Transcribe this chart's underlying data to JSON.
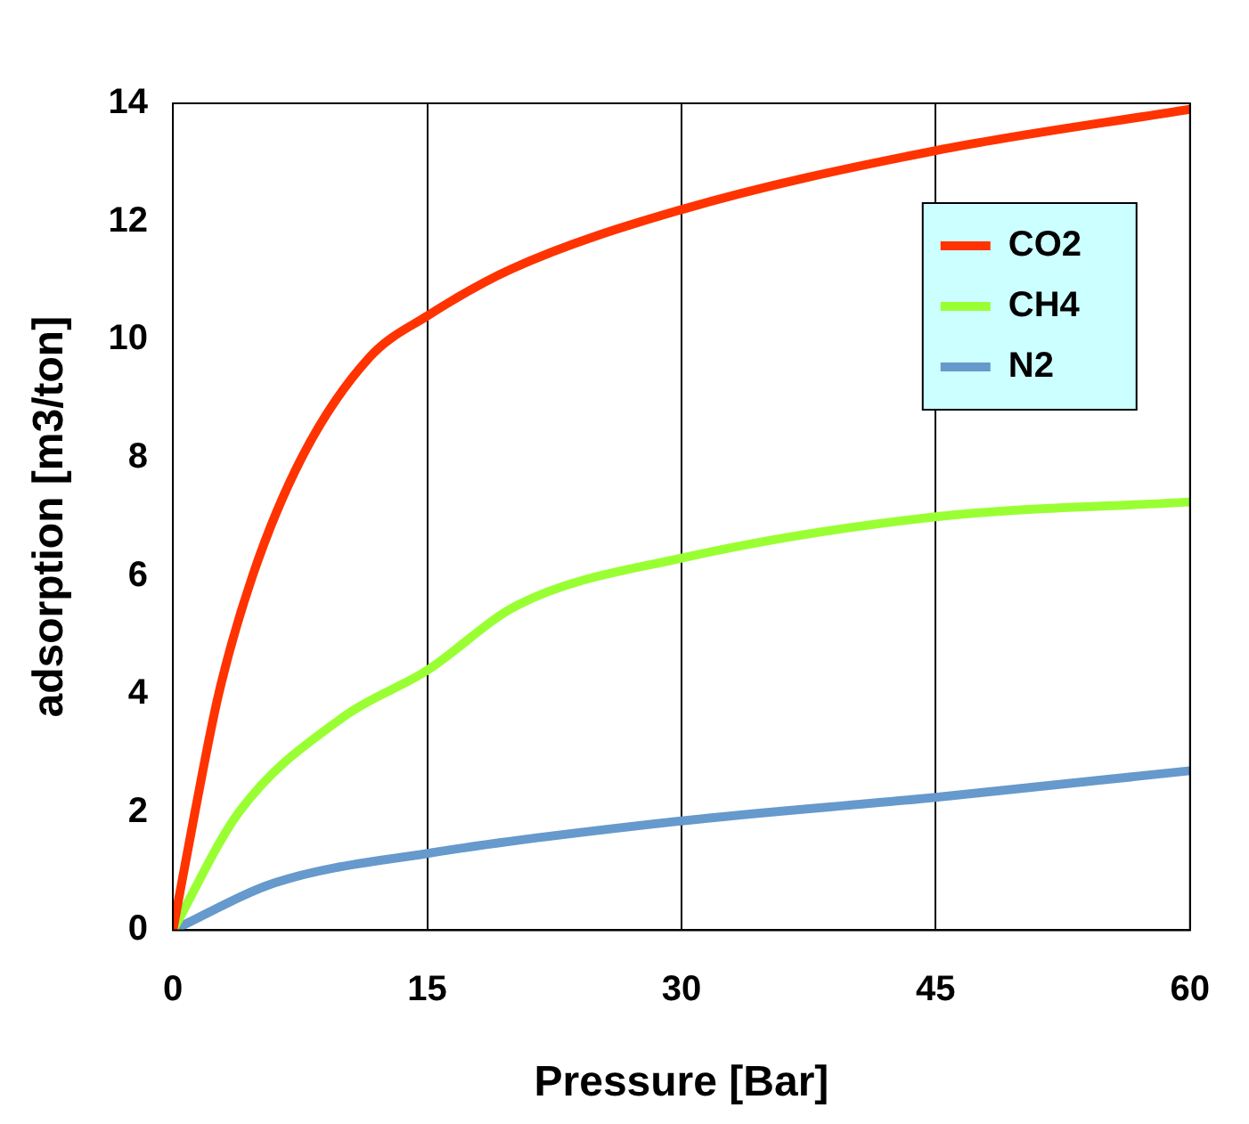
{
  "chart_data": {
    "type": "line",
    "xlabel": "Pressure [Bar]",
    "ylabel": "adsorption [m3/ton]",
    "xlim": [
      0,
      60
    ],
    "xticks": [
      0,
      15,
      30,
      45,
      60
    ],
    "ylim": [
      0,
      14
    ],
    "yticks": [
      0,
      2,
      4,
      6,
      8,
      10,
      12,
      14
    ],
    "grid": "x",
    "legend": "top right",
    "marker": "none",
    "line_style": "solid",
    "series": [
      {
        "name": "CO2",
        "color": "#ff3300",
        "x": [
          0,
          1.3,
          2.7,
          4.7,
          7.6,
          11.6,
          15,
          20,
          30,
          45,
          60
        ],
        "values": [
          0,
          2,
          4,
          6,
          8,
          9.7,
          10.4,
          11.2,
          12.2,
          13.2,
          13.9
        ]
      },
      {
        "name": "CH4",
        "color": "#99ff33",
        "x": [
          0,
          3.9,
          10,
          15,
          20.3,
          30,
          45,
          60
        ],
        "values": [
          0,
          2,
          3.6,
          4.4,
          5.5,
          6.3,
          7.0,
          7.25
        ]
      },
      {
        "name": "N2",
        "color": "#6699cc",
        "x": [
          0,
          6,
          15,
          30,
          45,
          60
        ],
        "values": [
          0,
          0.8,
          1.3,
          1.85,
          2.25,
          2.7
        ]
      }
    ]
  }
}
